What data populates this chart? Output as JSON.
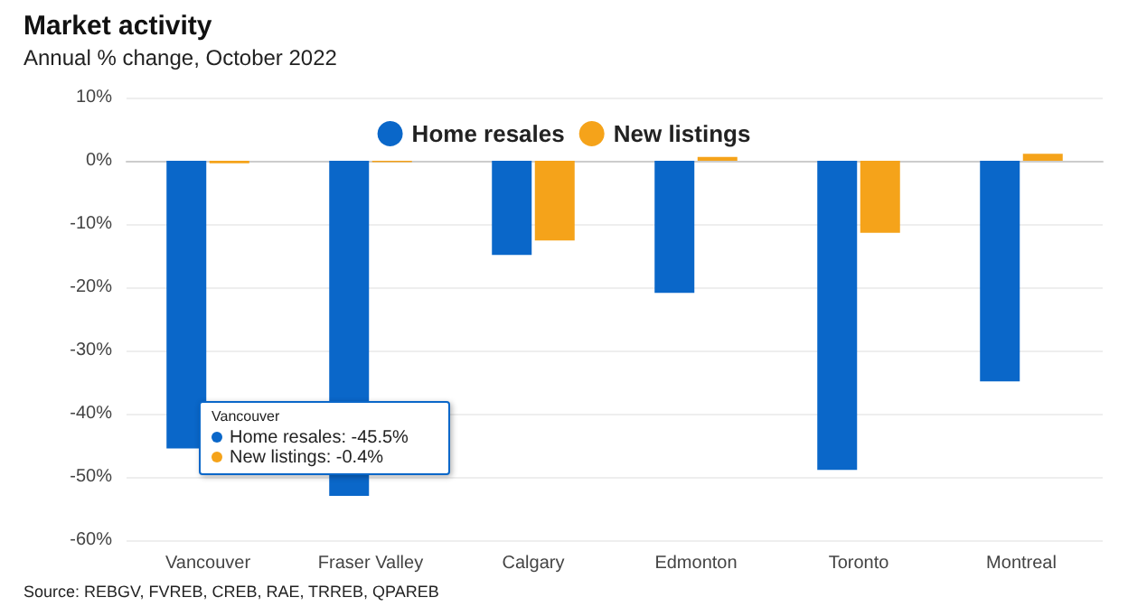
{
  "chart_data": {
    "type": "bar",
    "title": "Market activity",
    "subtitle": "Annual % change, October 2022",
    "categories": [
      "Vancouver",
      "Fraser Valley",
      "Calgary",
      "Edmonton",
      "Toronto",
      "Montreal"
    ],
    "series": [
      {
        "name": "Home resales",
        "color": "#0a67c9",
        "values": [
          -45.5,
          -53,
          -14.9,
          -20.9,
          -48.9,
          -34.9
        ]
      },
      {
        "name": "New listings",
        "color": "#f5a31a",
        "values": [
          -0.4,
          -0.2,
          -12.6,
          0.6,
          -11.4,
          1.1
        ]
      }
    ],
    "ylim": [
      -60,
      10
    ],
    "yticks": [
      {
        "value": -60,
        "label": "-60%"
      },
      {
        "value": -50,
        "label": "-50%"
      },
      {
        "value": -40,
        "label": "-40%"
      },
      {
        "value": -30,
        "label": "-30%"
      },
      {
        "value": -20,
        "label": "-20%"
      },
      {
        "value": -10,
        "label": "-10%"
      },
      {
        "value": 0,
        "label": "0%"
      },
      {
        "value": 10,
        "label": "10%"
      }
    ],
    "grid": "y",
    "legend": "top",
    "annotations": [
      "Source: REBGV, FVREB, CREB, RAE, TRREB, QPAREB",
      "Vancouver",
      "Home resales: -45.5%",
      "New listings: -0.4%"
    ]
  }
}
